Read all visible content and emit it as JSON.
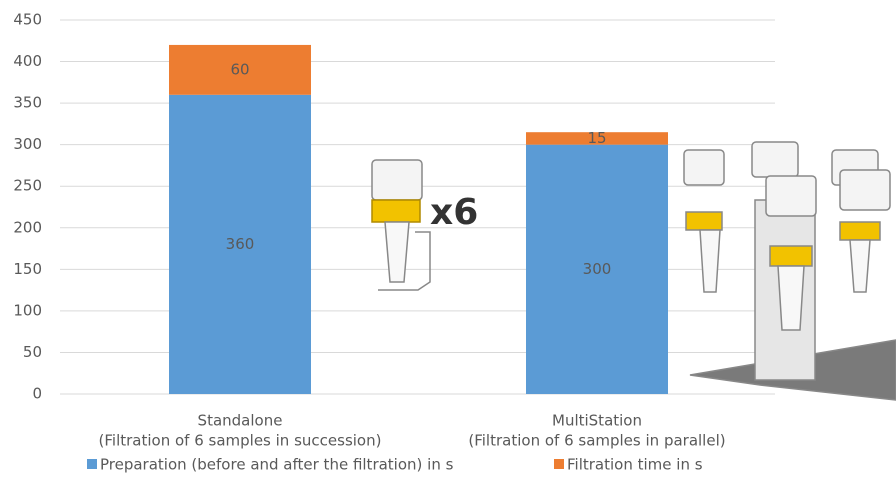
{
  "chart_data": {
    "type": "stacked-bar",
    "categories": [
      "Standalone",
      "MultiStation"
    ],
    "category_subtitles": [
      "(Filtration of 6 samples in succession)",
      "(Filtration of 6 samples in parallel)"
    ],
    "series": [
      {
        "name": "Preparation (before and after the filtration) in s",
        "color": "#5b9bd5",
        "values": [
          360,
          300
        ]
      },
      {
        "name": "Filtration time in s",
        "color": "#ed7d31",
        "values": [
          60,
          15
        ]
      }
    ],
    "ylim": [
      0,
      450
    ],
    "yticks": [
      0,
      50,
      100,
      150,
      200,
      250,
      300,
      350,
      400,
      450
    ],
    "grid": true,
    "legend": "bottom",
    "annotations": [
      "x6"
    ]
  }
}
